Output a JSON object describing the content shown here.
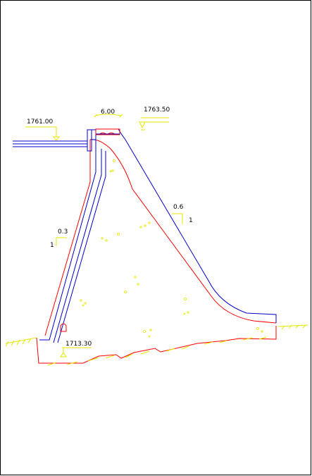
{
  "elevations": {
    "upstream_water_level": "1761.00",
    "dam_crest": "1763.50",
    "foundation_base": "1713.30"
  },
  "crest_width": "6.00",
  "slopes": {
    "upstream": {
      "ratio": "0.3",
      "unit": "1"
    },
    "downstream": {
      "ratio": "0.6",
      "unit": "1"
    }
  },
  "colors": {
    "frame": "#000000",
    "outline_red": "#ff0000",
    "outline_blue": "#0000cc",
    "annotation_yellow": "#e6e600",
    "label_text": "#000000"
  }
}
